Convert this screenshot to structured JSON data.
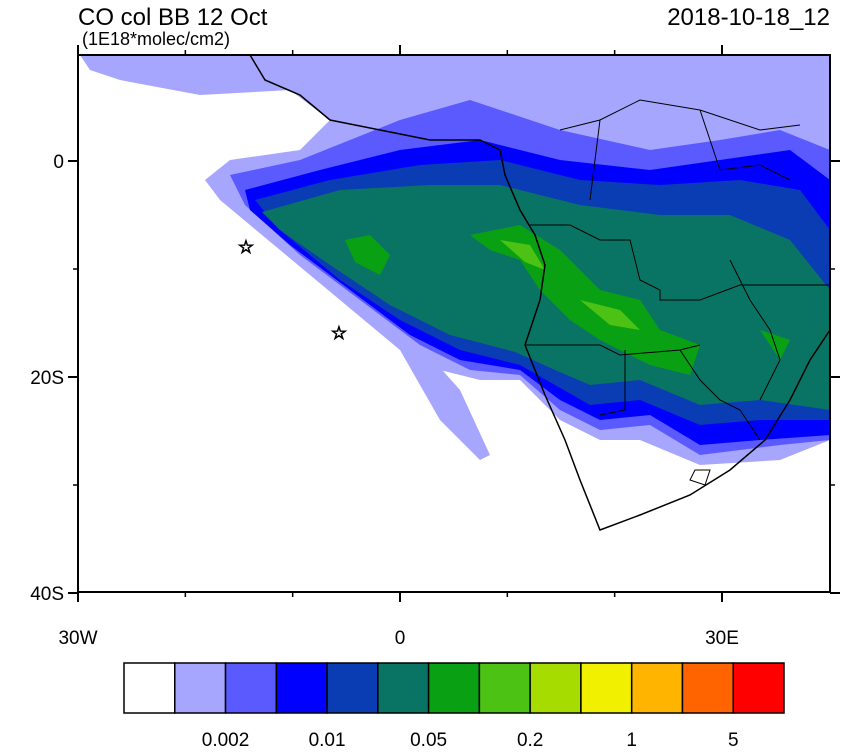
{
  "header": {
    "title": "CO col BB 12 Oct",
    "units": "(1E18*molec/cm2)",
    "date": "2018-10-18_12"
  },
  "map": {
    "lat_ticks": [
      0,
      {
        "value": -20,
        "label": "20S"
      },
      {
        "value": -40,
        "label": "40S"
      }
    ],
    "lon_ticks": [
      {
        "value": -30,
        "label": "30W"
      },
      0,
      {
        "value": 30,
        "label": "30E"
      }
    ]
  },
  "colorbar": {
    "colors": [
      "#ffffff",
      "#a6a6ff",
      "#5a5aff",
      "#0000ff",
      "#0a3cb4",
      "#0a7464",
      "#0aa014",
      "#4cc314",
      "#a6dc00",
      "#f0f000",
      "#ffb400",
      "#ff6400",
      "#ff0000"
    ],
    "labels": [
      0.002,
      0.01,
      0.05,
      0.2,
      1,
      5
    ]
  }
}
